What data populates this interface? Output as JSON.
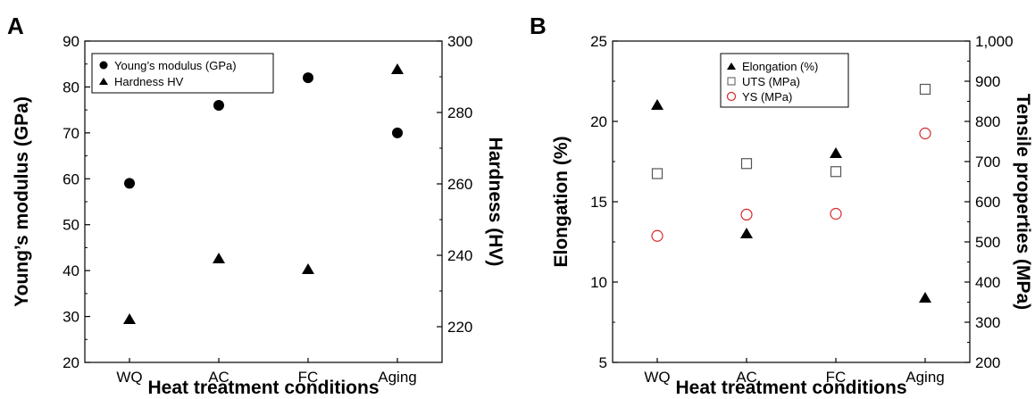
{
  "chart_data": [
    {
      "panel_label": "A",
      "type": "scatter",
      "categories": [
        "WQ",
        "AC",
        "FC",
        "Aging"
      ],
      "xlabel": "Heat treatment conditions",
      "ylabel": "Young’s modulus (GPa)",
      "ylabel_right": "Hardness (HV)",
      "ylim": [
        20,
        90
      ],
      "ylim_right": [
        210,
        300
      ],
      "yticks": [
        "20",
        "30",
        "40",
        "50",
        "60",
        "70",
        "80",
        "90"
      ],
      "yticks_right": [
        "220",
        "240",
        "260",
        "280",
        "300"
      ],
      "legend_position": "top-left",
      "series": [
        {
          "name": "Young’s modulus (GPa)",
          "axis": "left",
          "marker": "filled-circle",
          "color": "#000000",
          "values": [
            59,
            76,
            82,
            70
          ]
        },
        {
          "name": "Hardness HV",
          "axis": "right",
          "marker": "filled-triangle",
          "color": "#000000",
          "values": [
            222,
            239,
            236,
            292
          ]
        }
      ]
    },
    {
      "panel_label": "B",
      "type": "scatter",
      "categories": [
        "WQ",
        "AC",
        "FC",
        "Aging"
      ],
      "xlabel": "Heat treatment conditions",
      "ylabel": "Elongation (%)",
      "ylabel_right": "Tensile properties (MPa)",
      "ylim": [
        5,
        25
      ],
      "ylim_right": [
        200,
        1000
      ],
      "yticks": [
        "5",
        "10",
        "15",
        "20",
        "25"
      ],
      "yticks_right": [
        "200",
        "300",
        "400",
        "500",
        "600",
        "700",
        "800",
        "900",
        "1,000"
      ],
      "legend_position": "top-center",
      "series": [
        {
          "name": "Elongation (%)",
          "axis": "left",
          "marker": "filled-triangle",
          "color": "#000000",
          "values": [
            21,
            13,
            18,
            9
          ]
        },
        {
          "name": "UTS (MPa)",
          "axis": "right",
          "marker": "open-square",
          "color": "#555555",
          "values": [
            670,
            695,
            675,
            880
          ]
        },
        {
          "name": "YS (MPa)",
          "axis": "right",
          "marker": "open-circle",
          "color": "#d62728",
          "values": [
            515,
            568,
            570,
            770
          ]
        }
      ]
    }
  ]
}
